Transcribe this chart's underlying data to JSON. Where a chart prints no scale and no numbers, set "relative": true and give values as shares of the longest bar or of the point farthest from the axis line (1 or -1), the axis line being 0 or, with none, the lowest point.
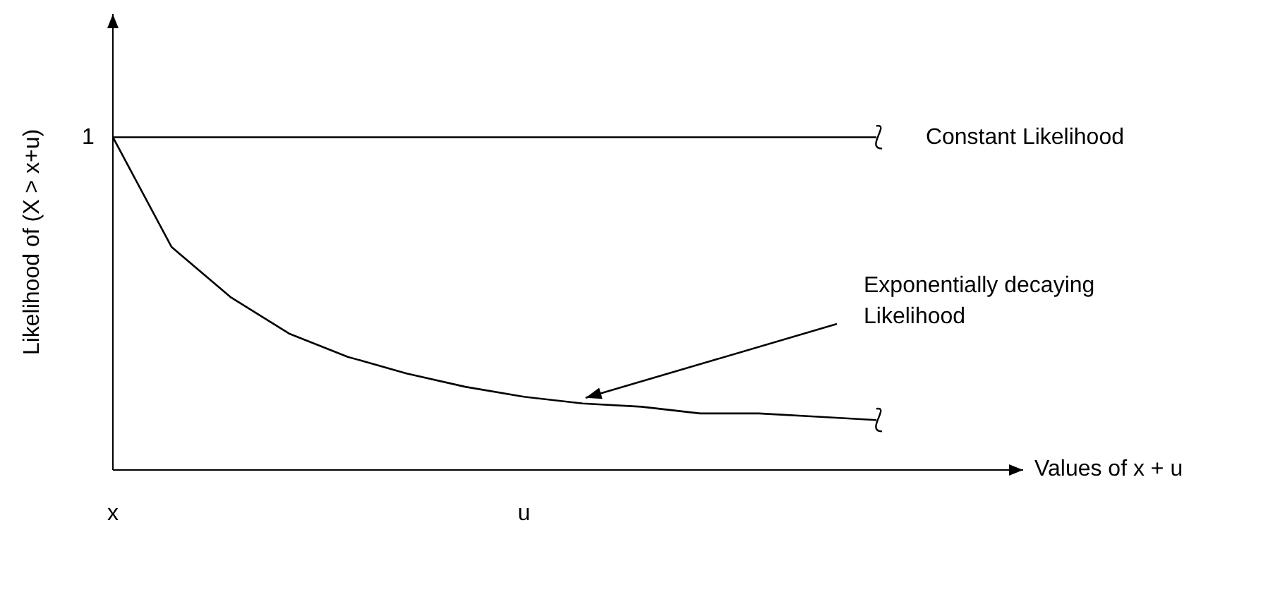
{
  "chart_data": {
    "type": "line",
    "relative": true,
    "ylabel": "Likelihood of (X > x+u)",
    "categories": [
      "x",
      null,
      null,
      null,
      null,
      null,
      null,
      "u",
      null,
      null,
      null,
      null,
      null,
      null
    ],
    "series": [
      {
        "color": "#000000",
        "values": [
          1,
          1,
          1,
          1,
          1,
          1,
          1,
          1,
          1,
          1,
          1,
          1,
          1,
          1
        ]
      },
      {
        "color": "#000000",
        "values": [
          1,
          0.67,
          0.52,
          0.41,
          0.34,
          0.29,
          0.25,
          0.22,
          0.2,
          0.19,
          0.17,
          0.17,
          0.16,
          0.15
        ]
      }
    ],
    "annotations": [
      "1",
      "Constant Likelihood",
      "Exponentially decaying Likelihood",
      "Values of x + u"
    ]
  }
}
